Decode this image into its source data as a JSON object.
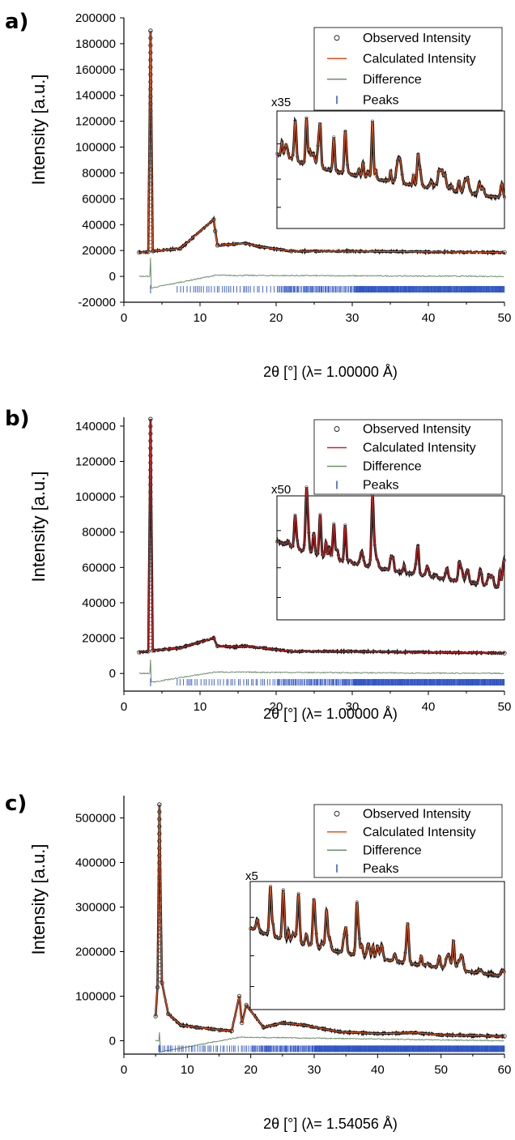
{
  "chart_data": [
    {
      "type": "line",
      "panel_label": "a)",
      "xlabel": "2θ [°] (λ= 1.00000 Å)",
      "ylabel": "Intensity [a.u.]",
      "xlim": [
        0,
        50
      ],
      "ylim": [
        -20000,
        200000
      ],
      "xticks": [
        "0",
        "10",
        "20",
        "30",
        "40",
        "50"
      ],
      "yticks": [
        "-20000",
        "0",
        "20000",
        "40000",
        "60000",
        "80000",
        "100000",
        "120000",
        "140000",
        "160000",
        "180000",
        "200000"
      ],
      "legend": [
        "Observed Intensity",
        "Calculated Intensity",
        "Difference",
        "Peaks"
      ],
      "legend_position": "top-right",
      "inset": {
        "scale_label": "x35",
        "x_range": [
          20,
          50
        ]
      },
      "series": [
        {
          "name": "Observed Intensity",
          "x": [
            2,
            3.2,
            3.5,
            3.8,
            7.4,
            11.8,
            12.0,
            12.3,
            14.5,
            16.0,
            17.8,
            22,
            29.5,
            50
          ],
          "y": [
            18500,
            19000,
            190000,
            19500,
            21500,
            44000,
            35000,
            24000,
            25000,
            25500,
            23000,
            19500,
            19500,
            18500
          ]
        },
        {
          "name": "Calculated Intensity",
          "x": [
            2,
            3.2,
            3.5,
            3.8,
            7.4,
            11.8,
            12.0,
            12.3,
            14.5,
            16.0,
            17.8,
            22,
            29.5,
            50
          ],
          "y": [
            18500,
            19000,
            190000,
            19500,
            21500,
            44000,
            35000,
            24000,
            25000,
            25500,
            23000,
            19500,
            19500,
            18500
          ]
        },
        {
          "name": "Difference",
          "x": [
            2,
            3.4,
            3.5,
            3.6,
            12,
            50
          ],
          "y": [
            0,
            0,
            14000,
            -9000,
            800,
            0
          ]
        }
      ],
      "peaks_y": -10000,
      "peaks_x_range": [
        7,
        50
      ]
    },
    {
      "type": "line",
      "panel_label": "b)",
      "xlabel": "2θ [°] (λ= 1.00000 Å)",
      "ylabel": "Intensity [a.u.]",
      "xlim": [
        0,
        50
      ],
      "ylim": [
        -10000,
        145000
      ],
      "xticks": [
        "0",
        "10",
        "20",
        "30",
        "40",
        "50"
      ],
      "yticks": [
        "0",
        "20000",
        "40000",
        "60000",
        "80000",
        "100000",
        "120000",
        "140000"
      ],
      "legend": [
        "Observed Intensity",
        "Calculated Intensity",
        "Difference",
        "Peaks"
      ],
      "legend_position": "top-right",
      "inset": {
        "scale_label": "x50",
        "x_range": [
          20,
          50
        ]
      },
      "series": [
        {
          "name": "Observed Intensity",
          "x": [
            2,
            3.2,
            3.5,
            3.8,
            7.4,
            11.8,
            12.3,
            14.5,
            16.0,
            22,
            29.5,
            50
          ],
          "y": [
            12000,
            12500,
            144000,
            13000,
            14500,
            20000,
            15500,
            15000,
            15500,
            12500,
            12500,
            11500
          ]
        },
        {
          "name": "Calculated Intensity",
          "x": [
            2,
            3.2,
            3.5,
            3.8,
            7.4,
            11.8,
            12.3,
            14.5,
            16.0,
            22,
            29.5,
            50
          ],
          "y": [
            12000,
            12500,
            144000,
            13000,
            14500,
            20000,
            15500,
            15000,
            15500,
            12500,
            12500,
            11500
          ]
        },
        {
          "name": "Difference",
          "x": [
            2,
            3.4,
            3.5,
            3.6,
            12,
            50
          ],
          "y": [
            0,
            0,
            8000,
            -5000,
            800,
            0
          ]
        }
      ],
      "peaks_y": -5000,
      "peaks_x_range": [
        7,
        50
      ]
    },
    {
      "type": "line",
      "panel_label": "c)",
      "xlabel": "2θ [°] (λ= 1.54056 Å)",
      "ylabel": "Intensity [a.u.]",
      "xlim": [
        0,
        60
      ],
      "ylim": [
        -30000,
        550000
      ],
      "xticks": [
        "0",
        "10",
        "20",
        "30",
        "40",
        "50",
        "60"
      ],
      "yticks": [
        "0",
        "100000",
        "200000",
        "300000",
        "400000",
        "500000"
      ],
      "legend": [
        "Observed Intensity",
        "Calculated Intensity",
        "Difference",
        "Peaks"
      ],
      "legend_position": "top-right",
      "inset": {
        "scale_label": "x5",
        "x_range": [
          18,
          60
        ]
      },
      "series": [
        {
          "name": "Observed Intensity",
          "x": [
            5,
            5.3,
            5.6,
            6.0,
            7,
            9,
            11.5,
            14,
            17,
            18.2,
            18.6,
            19.3,
            22,
            25,
            28.4,
            34,
            40,
            46,
            50,
            60
          ],
          "y": [
            55000,
            120000,
            530000,
            130000,
            60000,
            35000,
            30000,
            26000,
            22000,
            100000,
            40000,
            80000,
            30000,
            40000,
            35000,
            20000,
            16000,
            18000,
            13000,
            10000
          ]
        },
        {
          "name": "Calculated Intensity",
          "x": [
            5,
            5.3,
            5.6,
            6.0,
            7,
            9,
            11.5,
            14,
            17,
            18.2,
            18.6,
            19.3,
            22,
            25,
            28.4,
            34,
            40,
            46,
            50,
            60
          ],
          "y": [
            55000,
            120000,
            530000,
            130000,
            60000,
            35000,
            30000,
            26000,
            22000,
            100000,
            40000,
            80000,
            30000,
            40000,
            35000,
            20000,
            16000,
            18000,
            13000,
            10000
          ]
        },
        {
          "name": "Difference",
          "x": [
            5,
            5.5,
            5.6,
            5.8,
            18.2,
            60
          ],
          "y": [
            0,
            0,
            20000,
            -25000,
            8000,
            0
          ]
        }
      ],
      "peaks_y": -18000,
      "peaks_x_range": [
        5.5,
        60
      ]
    }
  ],
  "colors": {
    "observed": "#111111",
    "calculated_a": "#e8501a",
    "calculated": "#d62020",
    "difference": "#6b8f6b",
    "peaks": "#2f55c4"
  }
}
